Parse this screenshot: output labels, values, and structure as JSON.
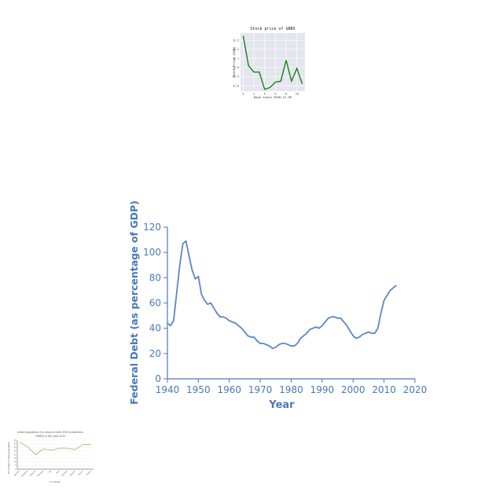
{
  "chart_data": [
    {
      "type": "line",
      "title": "Stock price of GNRX",
      "xlabel": "Days since 2016-12-30",
      "ylabel": "Stock Price (USD)",
      "x": [
        0,
        1,
        2,
        3,
        4,
        5,
        6,
        7,
        8,
        9,
        10,
        11
      ],
      "values": [
        32.35,
        32.02,
        31.95,
        31.95,
        31.76,
        31.78,
        31.84,
        31.85,
        32.08,
        31.85,
        31.99,
        31.82
      ],
      "xticks": [
        "0",
        "2",
        "4",
        "6",
        "8",
        "10"
      ],
      "yticks": [
        "31.8",
        "31.9",
        "32.0",
        "32.1",
        "32.2",
        "32.3"
      ],
      "xlim": [
        -0.5,
        11.5
      ],
      "ylim": [
        31.74,
        32.38
      ],
      "color": "#008000",
      "background": "#e5e5f0",
      "grid": true
    },
    {
      "type": "line",
      "xlabel": "Year",
      "ylabel": "Federal Debt (as percentage of GDP)",
      "x": [
        1940,
        1941,
        1942,
        1943,
        1944,
        1945,
        1946,
        1947,
        1948,
        1949,
        1950,
        1951,
        1952,
        1953,
        1954,
        1955,
        1956,
        1957,
        1958,
        1959,
        1960,
        1961,
        1962,
        1963,
        1964,
        1965,
        1966,
        1967,
        1968,
        1969,
        1970,
        1971,
        1972,
        1973,
        1974,
        1975,
        1976,
        1977,
        1978,
        1979,
        1980,
        1981,
        1982,
        1983,
        1984,
        1985,
        1986,
        1987,
        1988,
        1989,
        1990,
        1991,
        1992,
        1993,
        1994,
        1995,
        1996,
        1997,
        1998,
        1999,
        2000,
        2001,
        2002,
        2003,
        2004,
        2005,
        2006,
        2007,
        2008,
        2009,
        2010,
        2011,
        2012,
        2013,
        2014
      ],
      "values": [
        44,
        42,
        46,
        68,
        90,
        107,
        109,
        97,
        86,
        79,
        81,
        67,
        62,
        59,
        60,
        56,
        52,
        49,
        49,
        48,
        46,
        45,
        44,
        42,
        40,
        37,
        34,
        33,
        33,
        30,
        28,
        28,
        27,
        26,
        24,
        25,
        27,
        28,
        28,
        27,
        26,
        26,
        28,
        32,
        34,
        36,
        39,
        40,
        41,
        40,
        42,
        45,
        48,
        49,
        49,
        48,
        48,
        45,
        42,
        38,
        34,
        32,
        33,
        35,
        36,
        37,
        36,
        36,
        40,
        52,
        62,
        66,
        70,
        72,
        74
      ],
      "xticks": [
        "1940",
        "1950",
        "1960",
        "1970",
        "1980",
        "1990",
        "2000",
        "2010",
        "2020"
      ],
      "yticks": [
        "0",
        "20",
        "40",
        "60",
        "80",
        "100",
        "120"
      ],
      "xlim": [
        1940,
        2020
      ],
      "ylim": [
        0,
        120
      ],
      "color": "#5b86c6",
      "axis_color": "#4a78b8",
      "grid": false
    },
    {
      "type": "line",
      "title": "Urban population (%) long-run with 2050 projections (OWID) in the year 2010",
      "xlabel": "Countries",
      "ylabel": "Percentage of urban population",
      "categories": [
        "Bhutan",
        "Bulgaria",
        "Djibouti",
        "Ethiopia",
        "Fiji",
        "Iran",
        "Jamaica",
        "Kosovo",
        "Nauru",
        "Sudan"
      ],
      "values": [
        37,
        31,
        20,
        28,
        26,
        29,
        29,
        27,
        34,
        34
      ],
      "ylim": [
        0,
        40
      ],
      "yticks": [
        "0",
        "5",
        "10",
        "15",
        "20",
        "25",
        "30",
        "35",
        "40"
      ],
      "color": "#9bc47a",
      "grid": true
    }
  ]
}
